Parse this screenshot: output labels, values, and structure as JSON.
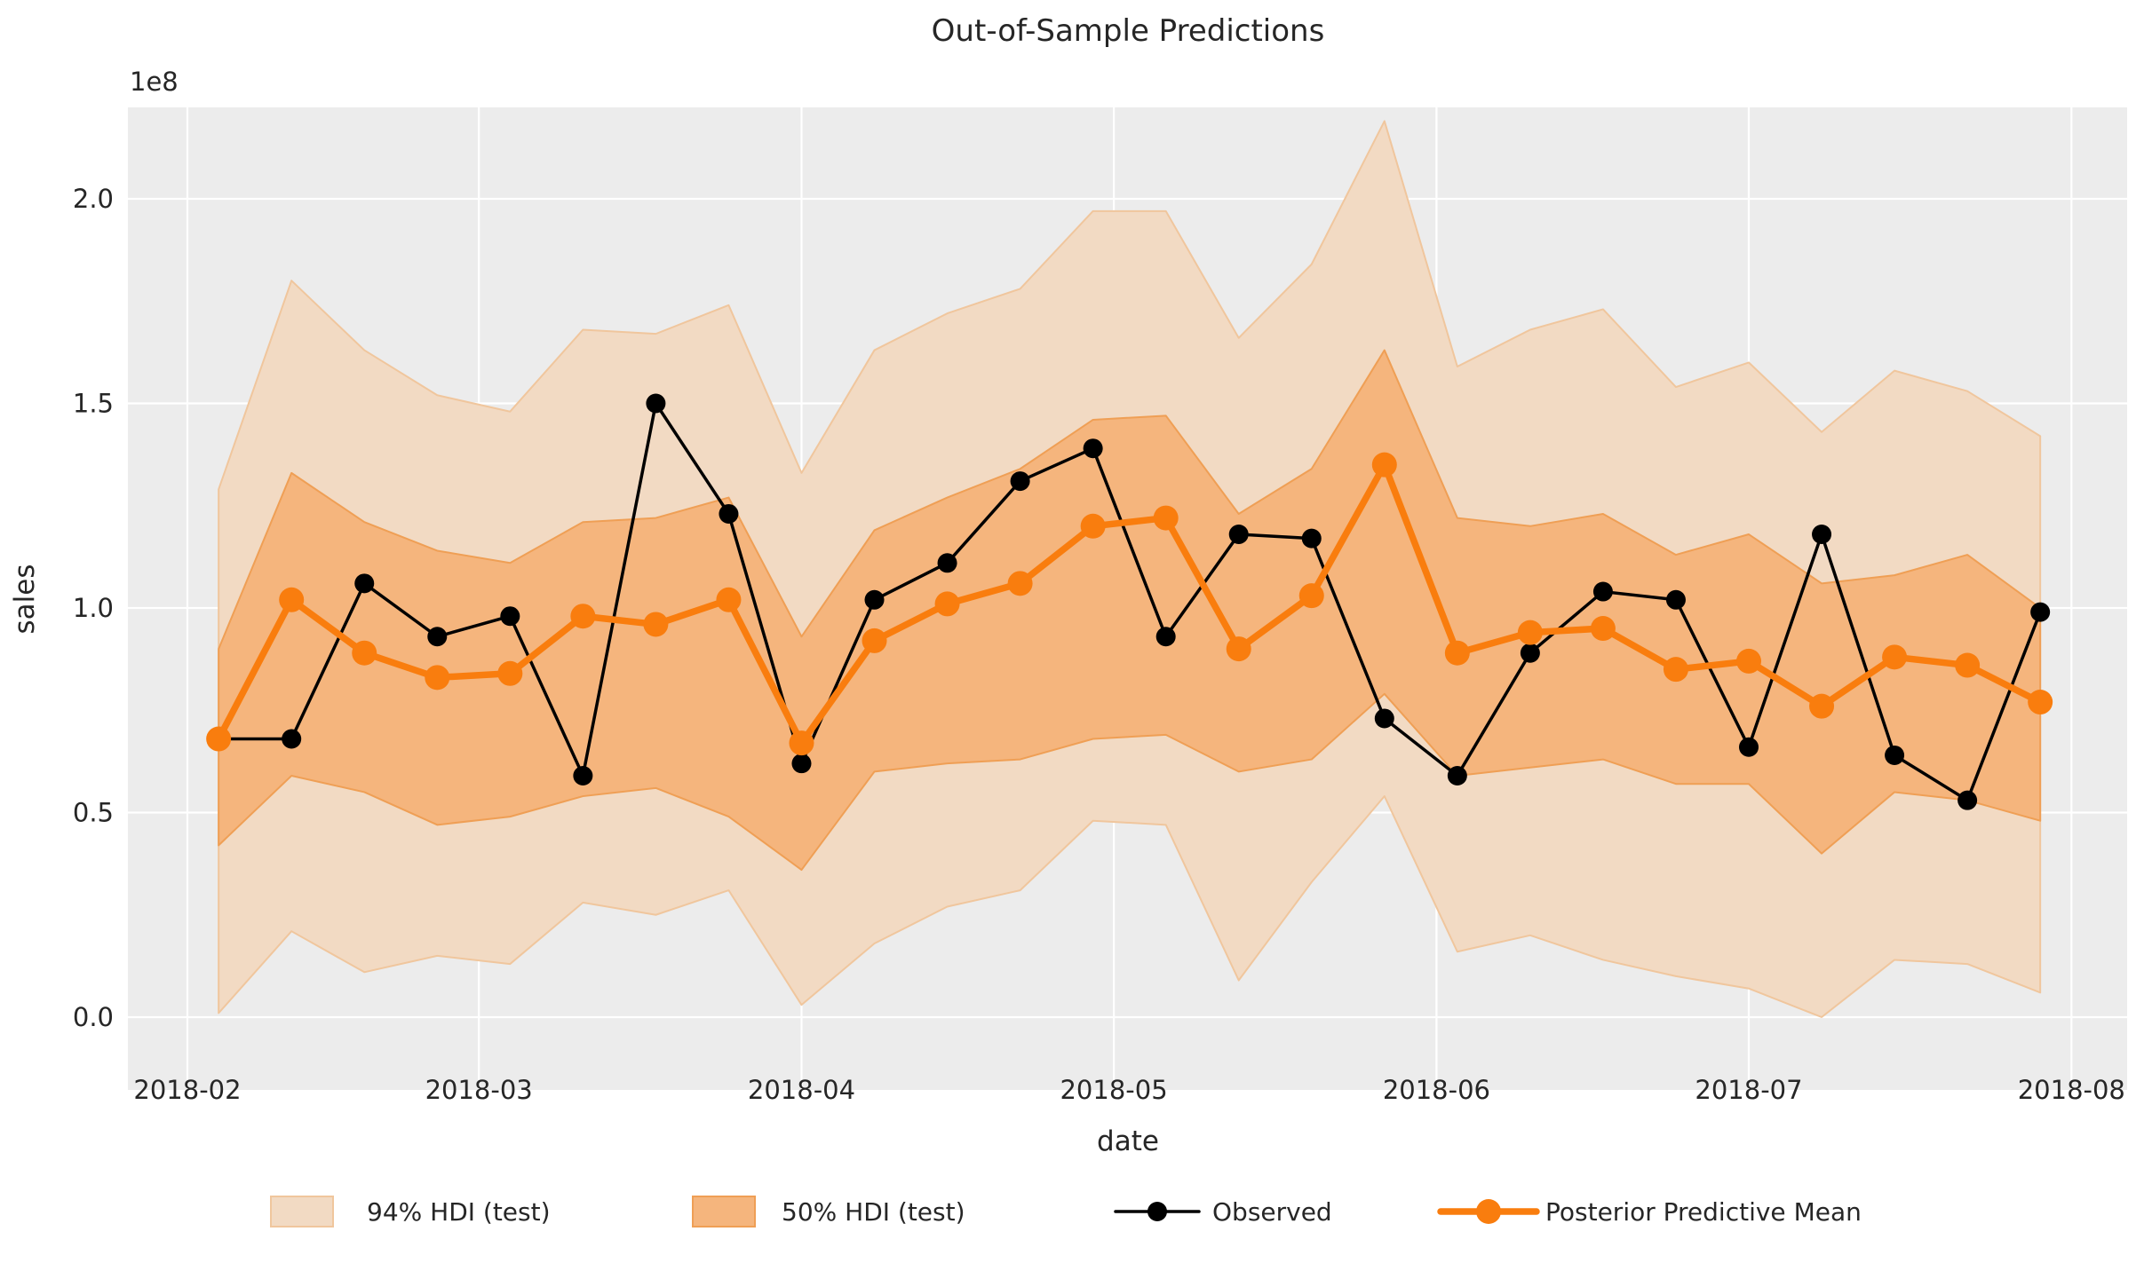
{
  "figure": {
    "title": "Out-of-Sample Predictions",
    "xlabel": "date",
    "ylabel": "sales",
    "y_offset_label": "1e8"
  },
  "colors": {
    "figure_bg": "#ffffff",
    "axes_bg": "#ececec",
    "grid": "#ffffff",
    "text": "#262626",
    "observed": "#000000",
    "ppm_orange": "#f97d0e",
    "hdi94_fill": "#f2dac3",
    "hdi94_edge": "#f0c69d",
    "hdi50_fill": "#f5b57d",
    "hdi50_edge": "#ef9f55"
  },
  "chart_data": {
    "type": "line",
    "title": "Out-of-Sample Predictions",
    "xlabel": "date",
    "ylabel": "sales",
    "units": "1e8",
    "grid": true,
    "x_tick_labels": [
      "2018-02",
      "2018-03",
      "2018-04",
      "2018-05",
      "2018-06",
      "2018-07",
      "2018-08"
    ],
    "y_tick_labels": [
      "0.0",
      "0.5",
      "1.0",
      "1.5",
      "2.0"
    ],
    "y_ticks": [
      0.0,
      0.5,
      1.0,
      1.5,
      2.0
    ],
    "ylim_display": [
      -0.18,
      2.22
    ],
    "x": [
      "2018-02-04",
      "2018-02-11",
      "2018-02-18",
      "2018-02-25",
      "2018-03-04",
      "2018-03-11",
      "2018-03-18",
      "2018-03-25",
      "2018-04-01",
      "2018-04-08",
      "2018-04-15",
      "2018-04-22",
      "2018-04-29",
      "2018-05-06",
      "2018-05-13",
      "2018-05-20",
      "2018-05-27",
      "2018-06-03",
      "2018-06-10",
      "2018-06-17",
      "2018-06-24",
      "2018-07-01",
      "2018-07-08",
      "2018-07-15",
      "2018-07-22",
      "2018-07-29"
    ],
    "series": [
      {
        "name": "Observed",
        "style": "line+marker",
        "color": "#000000",
        "values": [
          0.68,
          0.68,
          1.06,
          0.93,
          0.98,
          0.59,
          1.5,
          1.23,
          0.62,
          1.02,
          1.11,
          1.31,
          1.39,
          0.93,
          1.18,
          1.17,
          0.73,
          0.59,
          0.89,
          1.04,
          1.02,
          0.66,
          1.18,
          0.64,
          0.53,
          0.99
        ]
      },
      {
        "name": "Posterior Predictive Mean",
        "style": "line+marker",
        "color": "#f97d0e",
        "values": [
          0.68,
          1.02,
          0.89,
          0.83,
          0.84,
          0.98,
          0.96,
          1.02,
          0.67,
          0.92,
          1.01,
          1.06,
          1.2,
          1.22,
          0.9,
          1.03,
          1.35,
          0.89,
          0.94,
          0.95,
          0.85,
          0.87,
          0.76,
          0.88,
          0.86,
          0.77
        ]
      }
    ],
    "bands": [
      {
        "name": "94% HDI (test)",
        "upper": [
          1.29,
          1.8,
          1.63,
          1.52,
          1.48,
          1.68,
          1.67,
          1.74,
          1.33,
          1.63,
          1.72,
          1.78,
          1.97,
          1.97,
          1.66,
          1.84,
          2.19,
          1.59,
          1.68,
          1.73,
          1.54,
          1.6,
          1.43,
          1.58,
          1.53,
          1.42
        ],
        "lower": [
          0.01,
          0.21,
          0.11,
          0.15,
          0.13,
          0.28,
          0.25,
          0.31,
          0.03,
          0.18,
          0.27,
          0.31,
          0.48,
          0.47,
          0.09,
          0.33,
          0.54,
          0.16,
          0.2,
          0.14,
          0.1,
          0.07,
          0.0,
          0.14,
          0.13,
          0.06
        ]
      },
      {
        "name": "50% HDI (test)",
        "upper": [
          0.9,
          1.33,
          1.21,
          1.14,
          1.11,
          1.21,
          1.22,
          1.27,
          0.93,
          1.19,
          1.27,
          1.34,
          1.46,
          1.47,
          1.23,
          1.34,
          1.63,
          1.22,
          1.2,
          1.23,
          1.13,
          1.18,
          1.06,
          1.08,
          1.13,
          1.0
        ],
        "lower": [
          0.42,
          0.59,
          0.55,
          0.47,
          0.49,
          0.54,
          0.56,
          0.49,
          0.36,
          0.6,
          0.62,
          0.63,
          0.68,
          0.69,
          0.6,
          0.63,
          0.79,
          0.59,
          0.61,
          0.63,
          0.57,
          0.57,
          0.4,
          0.55,
          0.53,
          0.48
        ]
      }
    ],
    "legend": [
      {
        "label": "94% HDI (test)",
        "type": "patch"
      },
      {
        "label": "50% HDI (test)",
        "type": "patch"
      },
      {
        "label": "Observed",
        "type": "line-marker"
      },
      {
        "label": "Posterior Predictive Mean",
        "type": "line-marker"
      }
    ],
    "legend_position": "bottom"
  }
}
